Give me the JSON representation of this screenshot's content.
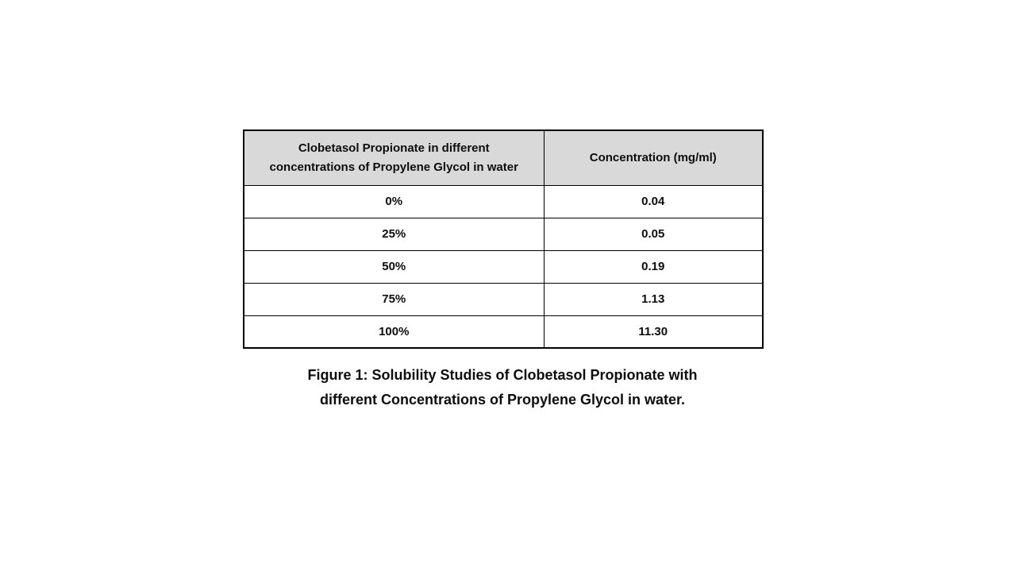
{
  "table": {
    "header_bg": "#d9d9d9",
    "border_color": "#000000",
    "headers": [
      "Clobetasol Propionate in different concentrations of Propylene Glycol in water",
      "Concentration (mg/ml)"
    ],
    "rows": [
      [
        "0%",
        "0.04"
      ],
      [
        "25%",
        "0.05"
      ],
      [
        "50%",
        "0.19"
      ],
      [
        "75%",
        "1.13"
      ],
      [
        "100%",
        "11.30"
      ]
    ]
  },
  "caption": {
    "line1": "Figure 1: Solubility Studies of Clobetasol Propionate with",
    "line2": "different Concentrations of Propylene Glycol in water."
  }
}
